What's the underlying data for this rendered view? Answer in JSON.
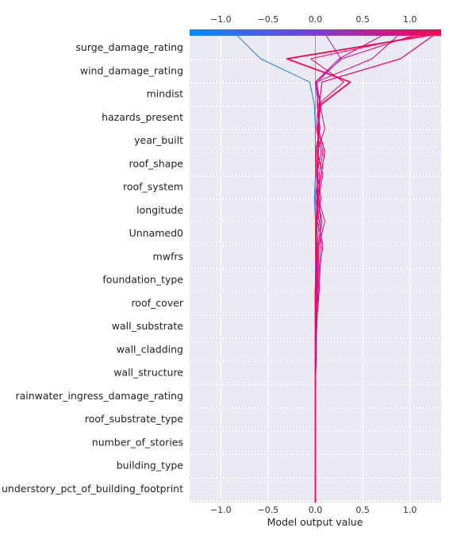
{
  "chart_data": {
    "type": "decision",
    "xlabel": "Model output value",
    "xlim": [
      -1.33,
      1.33
    ],
    "xticks": [
      -1.0,
      -0.5,
      0.0,
      0.5,
      1.0
    ],
    "xtick_labels": [
      "−1.0",
      "−0.5",
      "0.0",
      "0.5",
      "1.0"
    ],
    "base_value": 0.0,
    "colorbar": {
      "low_color": "#008bfb",
      "mid_color": "#7a3fd0",
      "high_color": "#ff0052"
    },
    "features": [
      "surge_damage_rating",
      "wind_damage_rating",
      "mindist",
      "hazards_present",
      "year_built",
      "roof_shape",
      "roof_system",
      "longitude",
      "Unnamed0",
      "mwfrs",
      "foundation_type",
      "roof_cover",
      "wall_substrate",
      "wall_cladding",
      "wall_structure",
      "rainwater_ingress_damage_rating",
      "roof_substrate_type",
      "number_of_stories",
      "building_type",
      "understory_pct_of_building_footprint"
    ],
    "series": [
      {
        "color": "#1f7de8",
        "width": 1.0,
        "values": [
          -0.85,
          -0.58,
          -0.06,
          -0.01,
          0.0,
          0.0,
          0.0,
          -0.01,
          0.0,
          0.0,
          0.0,
          0.0,
          0.0,
          0.0,
          0.0,
          0.0,
          0.0,
          0.0,
          0.0,
          0.0,
          0.0
        ]
      },
      {
        "color": "#ff0052",
        "width": 1.8,
        "values": [
          1.33,
          -0.3,
          0.37,
          0.05,
          0.03,
          0.03,
          0.02,
          0.02,
          0.01,
          0.01,
          0.01,
          0.0,
          0.0,
          0.0,
          0.0,
          0.0,
          0.0,
          0.0,
          0.0,
          0.0,
          0.0
        ]
      },
      {
        "color": "#e8006a",
        "width": 1.2,
        "values": [
          1.28,
          0.9,
          0.07,
          0.04,
          0.03,
          0.1,
          0.06,
          0.02,
          0.07,
          0.03,
          0.02,
          0.01,
          0.01,
          0.01,
          0.0,
          0.0,
          0.0,
          0.0,
          0.0,
          0.0,
          0.0
        ]
      },
      {
        "color": "#e00876",
        "width": 1.0,
        "values": [
          1.1,
          0.28,
          0.0,
          0.05,
          0.1,
          0.02,
          0.08,
          0.03,
          0.1,
          0.04,
          0.03,
          0.02,
          0.01,
          0.01,
          0.0,
          0.0,
          0.0,
          0.0,
          0.0,
          0.0,
          0.0
        ]
      },
      {
        "color": "#c40c9a",
        "width": 1.0,
        "values": [
          0.75,
          0.25,
          0.0,
          0.03,
          0.01,
          0.06,
          0.02,
          0.06,
          0.02,
          0.08,
          0.05,
          0.04,
          0.02,
          0.01,
          0.01,
          0.0,
          0.0,
          0.0,
          0.0,
          0.0,
          0.0
        ]
      },
      {
        "color": "#d9047a",
        "width": 1.0,
        "values": [
          0.9,
          0.6,
          0.01,
          0.06,
          0.02,
          0.08,
          0.04,
          0.04,
          0.05,
          0.06,
          0.04,
          0.03,
          0.02,
          0.01,
          0.0,
          0.0,
          0.0,
          0.0,
          0.0,
          0.0,
          0.0
        ]
      },
      {
        "color": "#a51cb8",
        "width": 1.0,
        "values": [
          0.1,
          0.27,
          0.02,
          0.02,
          0.05,
          0.0,
          0.03,
          0.0,
          0.04,
          0.02,
          0.01,
          0.03,
          0.0,
          0.01,
          0.0,
          0.0,
          0.0,
          0.0,
          0.0,
          0.0,
          0.0
        ]
      },
      {
        "color": "#f0055e",
        "width": 1.0,
        "values": [
          1.2,
          -0.05,
          0.3,
          0.02,
          0.04,
          0.01,
          0.01,
          0.03,
          0.02,
          0.01,
          0.02,
          0.01,
          0.01,
          0.0,
          0.0,
          0.0,
          0.0,
          0.0,
          0.0,
          0.0,
          0.0
        ]
      }
    ]
  }
}
